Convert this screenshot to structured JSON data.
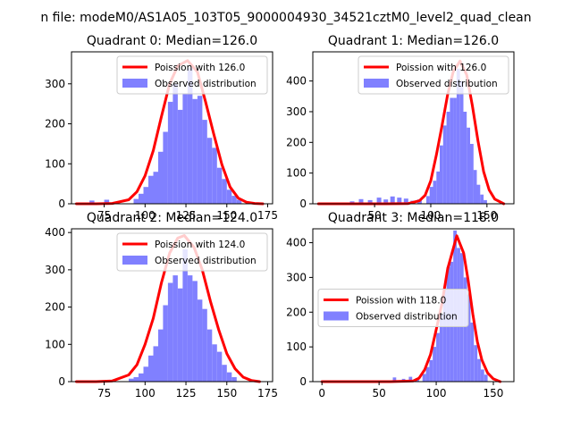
{
  "suptitle": "n file: modeM0/AS1A05_103T05_9000004930_34521cztM0_level2_quad_clean",
  "colors": {
    "poisson": "#ff0000",
    "observed": "#8080ff"
  },
  "chart_data": [
    {
      "type": "bar",
      "title": "Quadrant 0: Median=126.0",
      "xlim": [
        55,
        178
      ],
      "ylim": [
        0,
        380
      ],
      "xticks": [
        75,
        100,
        125,
        150,
        175
      ],
      "yticks": [
        0,
        100,
        200,
        300
      ],
      "legend_position": "upper-right",
      "legend": [
        "Poission with 126.0",
        "Observed distribution"
      ],
      "hist": {
        "bins": [
          [
            66,
            69,
            8
          ],
          [
            75,
            78,
            10
          ],
          [
            93,
            96,
            12
          ],
          [
            96,
            99,
            25
          ],
          [
            99,
            102,
            42
          ],
          [
            102,
            105,
            70
          ],
          [
            105,
            108,
            80
          ],
          [
            108,
            111,
            130
          ],
          [
            111,
            114,
            180
          ],
          [
            114,
            117,
            255
          ],
          [
            117,
            120,
            300
          ],
          [
            120,
            123,
            235
          ],
          [
            123,
            126,
            275
          ],
          [
            126,
            129,
            340
          ],
          [
            129,
            132,
            262
          ],
          [
            132,
            135,
            270
          ],
          [
            135,
            138,
            210
          ],
          [
            138,
            141,
            165
          ],
          [
            141,
            144,
            140
          ],
          [
            144,
            147,
            90
          ],
          [
            147,
            150,
            62
          ],
          [
            150,
            153,
            35
          ],
          [
            153,
            156,
            20
          ],
          [
            156,
            159,
            10
          ]
        ]
      },
      "curve": {
        "name": "Poission with 126.0",
        "x": [
          58,
          70,
          80,
          90,
          95,
          100,
          105,
          110,
          115,
          120,
          126,
          132,
          137,
          142,
          147,
          152,
          157,
          162,
          167,
          172
        ],
        "y": [
          0,
          0,
          1,
          10,
          30,
          70,
          133,
          218,
          300,
          345,
          358,
          330,
          255,
          175,
          98,
          42,
          14,
          4,
          1,
          0
        ]
      }
    },
    {
      "type": "bar",
      "title": "Quadrant 1: Median=126.0",
      "xlim": [
        -5,
        174
      ],
      "ylim": [
        0,
        495
      ],
      "xticks": [
        50,
        100,
        150
      ],
      "yticks": [
        0,
        100,
        200,
        300,
        400
      ],
      "legend_position": "upper-right",
      "legend": [
        "Poission with 126.0",
        "Observed distribution"
      ],
      "hist": {
        "bins": [
          [
            28,
            32,
            8
          ],
          [
            36,
            40,
            15
          ],
          [
            44,
            48,
            12
          ],
          [
            52,
            56,
            20
          ],
          [
            58,
            62,
            14
          ],
          [
            64,
            68,
            24
          ],
          [
            70,
            74,
            20
          ],
          [
            76,
            80,
            17
          ],
          [
            82,
            86,
            10
          ],
          [
            88,
            92,
            14
          ],
          [
            96,
            99,
            25
          ],
          [
            99,
            102,
            55
          ],
          [
            102,
            105,
            75
          ],
          [
            105,
            108,
            105
          ],
          [
            108,
            111,
            190
          ],
          [
            111,
            114,
            255
          ],
          [
            114,
            117,
            300
          ],
          [
            117,
            120,
            345
          ],
          [
            120,
            123,
            345
          ],
          [
            123,
            126,
            440
          ],
          [
            126,
            129,
            400
          ],
          [
            129,
            132,
            300
          ],
          [
            132,
            135,
            248
          ],
          [
            135,
            138,
            195
          ],
          [
            138,
            141,
            110
          ],
          [
            141,
            144,
            62
          ],
          [
            144,
            147,
            30
          ],
          [
            147,
            150,
            12
          ]
        ]
      },
      "curve": {
        "name": "Poission with 126.0",
        "x": [
          0,
          20,
          40,
          60,
          80,
          90,
          95,
          100,
          105,
          110,
          115,
          120,
          126,
          132,
          137,
          142,
          147,
          152,
          157,
          165
        ],
        "y": [
          0,
          0,
          0,
          0,
          1,
          10,
          28,
          75,
          160,
          255,
          355,
          430,
          465,
          420,
          320,
          205,
          105,
          45,
          15,
          0
        ]
      }
    },
    {
      "type": "bar",
      "title": "Quadrant 2: Median=124.0",
      "xlim": [
        55,
        178
      ],
      "ylim": [
        0,
        410
      ],
      "xticks": [
        75,
        100,
        125,
        150,
        175
      ],
      "yticks": [
        0,
        100,
        200,
        300,
        400
      ],
      "legend_position": "upper-right",
      "legend": [
        "Poission with 124.0",
        "Observed distribution"
      ],
      "hist": {
        "bins": [
          [
            90,
            93,
            8
          ],
          [
            93,
            96,
            12
          ],
          [
            96,
            99,
            22
          ],
          [
            99,
            102,
            40
          ],
          [
            102,
            105,
            70
          ],
          [
            105,
            108,
            95
          ],
          [
            108,
            111,
            140
          ],
          [
            111,
            114,
            205
          ],
          [
            114,
            117,
            265
          ],
          [
            117,
            120,
            285
          ],
          [
            120,
            123,
            250
          ],
          [
            123,
            126,
            355
          ],
          [
            126,
            129,
            285
          ],
          [
            129,
            132,
            270
          ],
          [
            132,
            135,
            220
          ],
          [
            135,
            138,
            195
          ],
          [
            138,
            141,
            140
          ],
          [
            141,
            144,
            100
          ],
          [
            144,
            147,
            80
          ],
          [
            147,
            150,
            45
          ],
          [
            150,
            153,
            25
          ],
          [
            153,
            156,
            12
          ]
        ]
      },
      "curve": {
        "name": "Poission with 124.0",
        "x": [
          58,
          70,
          80,
          90,
          95,
          100,
          105,
          110,
          115,
          120,
          124,
          130,
          135,
          140,
          145,
          150,
          155,
          160,
          165,
          170
        ],
        "y": [
          0,
          0,
          2,
          18,
          45,
          100,
          170,
          265,
          345,
          385,
          392,
          360,
          300,
          215,
          140,
          75,
          35,
          12,
          3,
          0
        ]
      }
    },
    {
      "type": "bar",
      "title": "Quadrant 3: Median=118.0",
      "xlim": [
        -8,
        168
      ],
      "ylim": [
        0,
        440
      ],
      "xticks": [
        0,
        50,
        100,
        150
      ],
      "yticks": [
        0,
        100,
        200,
        300,
        400
      ],
      "legend_position": "center-left",
      "legend": [
        "Poission with 118.0",
        "Observed distribution"
      ],
      "hist": {
        "bins": [
          [
            62,
            65,
            12
          ],
          [
            70,
            73,
            8
          ],
          [
            76,
            79,
            14
          ],
          [
            82,
            85,
            10
          ],
          [
            88,
            91,
            22
          ],
          [
            91,
            94,
            42
          ],
          [
            94,
            97,
            62
          ],
          [
            97,
            100,
            100
          ],
          [
            100,
            103,
            140
          ],
          [
            103,
            106,
            195
          ],
          [
            106,
            109,
            265
          ],
          [
            109,
            112,
            330
          ],
          [
            112,
            115,
            345
          ],
          [
            115,
            118,
            435
          ],
          [
            118,
            121,
            385
          ],
          [
            121,
            124,
            370
          ],
          [
            124,
            127,
            300
          ],
          [
            127,
            130,
            250
          ],
          [
            130,
            133,
            170
          ],
          [
            133,
            136,
            105
          ],
          [
            136,
            139,
            65
          ],
          [
            139,
            142,
            35
          ],
          [
            142,
            145,
            20
          ]
        ]
      },
      "curve": {
        "name": "Poission with 118.0",
        "x": [
          0,
          30,
          60,
          80,
          85,
          90,
          95,
          100,
          105,
          110,
          118,
          124,
          128,
          132,
          136,
          140,
          145,
          150,
          156
        ],
        "y": [
          0,
          0,
          0,
          2,
          10,
          35,
          78,
          150,
          225,
          325,
          420,
          370,
          290,
          195,
          115,
          62,
          25,
          8,
          0
        ]
      }
    }
  ]
}
